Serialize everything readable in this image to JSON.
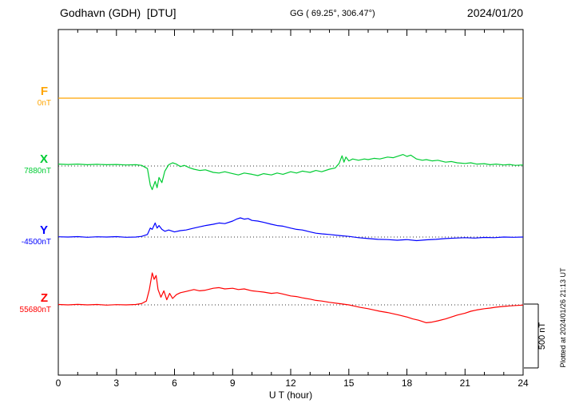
{
  "chart_data": {
    "type": "line",
    "title": "Godhavn (GDH)  [DTU]",
    "coords_label": "GG ( 69.25°, 306.47°)",
    "date": "2024/01/20",
    "xlabel": "U T (hour)",
    "ylabel": "",
    "xlim": [
      0,
      24
    ],
    "x_ticks": [
      0,
      3,
      6,
      9,
      12,
      15,
      18,
      21,
      24
    ],
    "grid": "dotted horizontal baseline per component",
    "legend": "left-side colored component labels",
    "scale_bar": {
      "label": "500 nT",
      "nT": 500
    },
    "plotted_note": "Plotted at 2024/01/26 21:13 UT",
    "series": [
      {
        "name": "F",
        "baseline_label": "0nT",
        "color": "#ffa500",
        "points": [
          [
            0,
            0
          ],
          [
            24,
            0
          ]
        ]
      },
      {
        "name": "X",
        "baseline_label": "7880nT",
        "color": "#00cc33",
        "points": [
          [
            0,
            15
          ],
          [
            0.5,
            12
          ],
          [
            1,
            15
          ],
          [
            1.5,
            10
          ],
          [
            2,
            13
          ],
          [
            2.5,
            10
          ],
          [
            3,
            12
          ],
          [
            3.5,
            8
          ],
          [
            4,
            10
          ],
          [
            4.3,
            5
          ],
          [
            4.6,
            -20
          ],
          [
            4.75,
            -150
          ],
          [
            4.85,
            -185
          ],
          [
            5.0,
            -120
          ],
          [
            5.1,
            -170
          ],
          [
            5.2,
            -90
          ],
          [
            5.35,
            -130
          ],
          [
            5.5,
            -40
          ],
          [
            5.7,
            10
          ],
          [
            5.9,
            25
          ],
          [
            6.1,
            15
          ],
          [
            6.3,
            -5
          ],
          [
            6.5,
            5
          ],
          [
            6.8,
            -15
          ],
          [
            7,
            -25
          ],
          [
            7.3,
            -35
          ],
          [
            7.6,
            -30
          ],
          [
            8,
            -50
          ],
          [
            8.3,
            -55
          ],
          [
            8.6,
            -45
          ],
          [
            9,
            -60
          ],
          [
            9.3,
            -70
          ],
          [
            9.6,
            -55
          ],
          [
            10,
            -65
          ],
          [
            10.3,
            -75
          ],
          [
            10.6,
            -60
          ],
          [
            11,
            -70
          ],
          [
            11.3,
            -55
          ],
          [
            11.6,
            -65
          ],
          [
            12,
            -45
          ],
          [
            12.3,
            -55
          ],
          [
            12.6,
            -40
          ],
          [
            13,
            -50
          ],
          [
            13.3,
            -35
          ],
          [
            13.6,
            -45
          ],
          [
            14,
            -25
          ],
          [
            14.3,
            -15
          ],
          [
            14.5,
            20
          ],
          [
            14.65,
            80
          ],
          [
            14.75,
            30
          ],
          [
            14.85,
            70
          ],
          [
            15,
            40
          ],
          [
            15.2,
            55
          ],
          [
            15.5,
            45
          ],
          [
            15.8,
            55
          ],
          [
            16,
            50
          ],
          [
            16.3,
            60
          ],
          [
            16.6,
            55
          ],
          [
            17,
            70
          ],
          [
            17.3,
            65
          ],
          [
            17.6,
            80
          ],
          [
            17.8,
            90
          ],
          [
            18,
            75
          ],
          [
            18.2,
            85
          ],
          [
            18.5,
            55
          ],
          [
            18.8,
            45
          ],
          [
            19,
            50
          ],
          [
            19.3,
            40
          ],
          [
            19.6,
            45
          ],
          [
            20,
            30
          ],
          [
            20.3,
            35
          ],
          [
            20.6,
            25
          ],
          [
            21,
            20
          ],
          [
            21.3,
            25
          ],
          [
            21.6,
            15
          ],
          [
            22,
            18
          ],
          [
            22.3,
            10
          ],
          [
            22.6,
            15
          ],
          [
            23,
            8
          ],
          [
            23.3,
            12
          ],
          [
            23.6,
            5
          ],
          [
            24,
            8
          ]
        ]
      },
      {
        "name": "Y",
        "baseline_label": "-4500nT",
        "color": "#0000ff",
        "points": [
          [
            0,
            2
          ],
          [
            0.5,
            0
          ],
          [
            1,
            3
          ],
          [
            1.5,
            -2
          ],
          [
            2,
            2
          ],
          [
            2.5,
            0
          ],
          [
            3,
            3
          ],
          [
            3.5,
            -2
          ],
          [
            4,
            0
          ],
          [
            4.3,
            5
          ],
          [
            4.6,
            20
          ],
          [
            4.75,
            70
          ],
          [
            4.85,
            60
          ],
          [
            5,
            110
          ],
          [
            5.1,
            70
          ],
          [
            5.2,
            90
          ],
          [
            5.35,
            60
          ],
          [
            5.5,
            45
          ],
          [
            5.7,
            55
          ],
          [
            6,
            40
          ],
          [
            6.3,
            50
          ],
          [
            6.6,
            55
          ],
          [
            7,
            70
          ],
          [
            7.3,
            80
          ],
          [
            7.6,
            90
          ],
          [
            8,
            100
          ],
          [
            8.3,
            110
          ],
          [
            8.6,
            105
          ],
          [
            9,
            125
          ],
          [
            9.2,
            140
          ],
          [
            9.4,
            150
          ],
          [
            9.6,
            140
          ],
          [
            9.8,
            145
          ],
          [
            10,
            130
          ],
          [
            10.3,
            125
          ],
          [
            10.6,
            115
          ],
          [
            11,
            100
          ],
          [
            11.3,
            90
          ],
          [
            11.6,
            85
          ],
          [
            12,
            70
          ],
          [
            12.3,
            60
          ],
          [
            12.6,
            55
          ],
          [
            13,
            40
          ],
          [
            13.3,
            30
          ],
          [
            13.6,
            25
          ],
          [
            14,
            20
          ],
          [
            14.5,
            12
          ],
          [
            15,
            5
          ],
          [
            15.5,
            -5
          ],
          [
            16,
            -12
          ],
          [
            16.5,
            -18
          ],
          [
            17,
            -20
          ],
          [
            17.5,
            -25
          ],
          [
            18,
            -20
          ],
          [
            18.5,
            -28
          ],
          [
            19,
            -22
          ],
          [
            19.5,
            -18
          ],
          [
            20,
            -12
          ],
          [
            20.5,
            -8
          ],
          [
            21,
            -5
          ],
          [
            21.5,
            -8
          ],
          [
            22,
            -3
          ],
          [
            22.5,
            -5
          ],
          [
            23,
            0
          ],
          [
            23.5,
            -2
          ],
          [
            24,
            0
          ]
        ]
      },
      {
        "name": "Z",
        "baseline_label": "55680nT",
        "color": "#ff0000",
        "points": [
          [
            0,
            3
          ],
          [
            0.5,
            0
          ],
          [
            1,
            4
          ],
          [
            1.5,
            0
          ],
          [
            2,
            3
          ],
          [
            2.5,
            -2
          ],
          [
            3,
            2
          ],
          [
            3.5,
            0
          ],
          [
            4,
            3
          ],
          [
            4.3,
            10
          ],
          [
            4.55,
            30
          ],
          [
            4.7,
            120
          ],
          [
            4.85,
            250
          ],
          [
            4.95,
            200
          ],
          [
            5.05,
            230
          ],
          [
            5.15,
            120
          ],
          [
            5.3,
            60
          ],
          [
            5.45,
            110
          ],
          [
            5.6,
            40
          ],
          [
            5.75,
            90
          ],
          [
            5.9,
            50
          ],
          [
            6.1,
            80
          ],
          [
            6.3,
            95
          ],
          [
            6.6,
            105
          ],
          [
            7,
            120
          ],
          [
            7.3,
            110
          ],
          [
            7.6,
            115
          ],
          [
            8,
            130
          ],
          [
            8.3,
            135
          ],
          [
            8.6,
            125
          ],
          [
            9,
            130
          ],
          [
            9.3,
            120
          ],
          [
            9.6,
            125
          ],
          [
            10,
            110
          ],
          [
            10.3,
            105
          ],
          [
            10.6,
            100
          ],
          [
            11,
            90
          ],
          [
            11.3,
            95
          ],
          [
            11.6,
            85
          ],
          [
            12,
            70
          ],
          [
            12.3,
            65
          ],
          [
            12.6,
            55
          ],
          [
            13,
            45
          ],
          [
            13.3,
            35
          ],
          [
            13.6,
            30
          ],
          [
            14,
            20
          ],
          [
            14.5,
            10
          ],
          [
            15,
            0
          ],
          [
            15.3,
            -10
          ],
          [
            15.6,
            -20
          ],
          [
            16,
            -30
          ],
          [
            16.3,
            -40
          ],
          [
            16.6,
            -50
          ],
          [
            17,
            -60
          ],
          [
            17.3,
            -70
          ],
          [
            17.6,
            -80
          ],
          [
            18,
            -95
          ],
          [
            18.3,
            -110
          ],
          [
            18.6,
            -120
          ],
          [
            19,
            -140
          ],
          [
            19.3,
            -135
          ],
          [
            19.6,
            -125
          ],
          [
            20,
            -110
          ],
          [
            20.3,
            -95
          ],
          [
            20.6,
            -80
          ],
          [
            21,
            -65
          ],
          [
            21.3,
            -50
          ],
          [
            21.6,
            -40
          ],
          [
            22,
            -30
          ],
          [
            22.3,
            -25
          ],
          [
            22.6,
            -18
          ],
          [
            23,
            -12
          ],
          [
            23.3,
            -8
          ],
          [
            23.6,
            -5
          ],
          [
            24,
            -2
          ]
        ]
      }
    ]
  }
}
